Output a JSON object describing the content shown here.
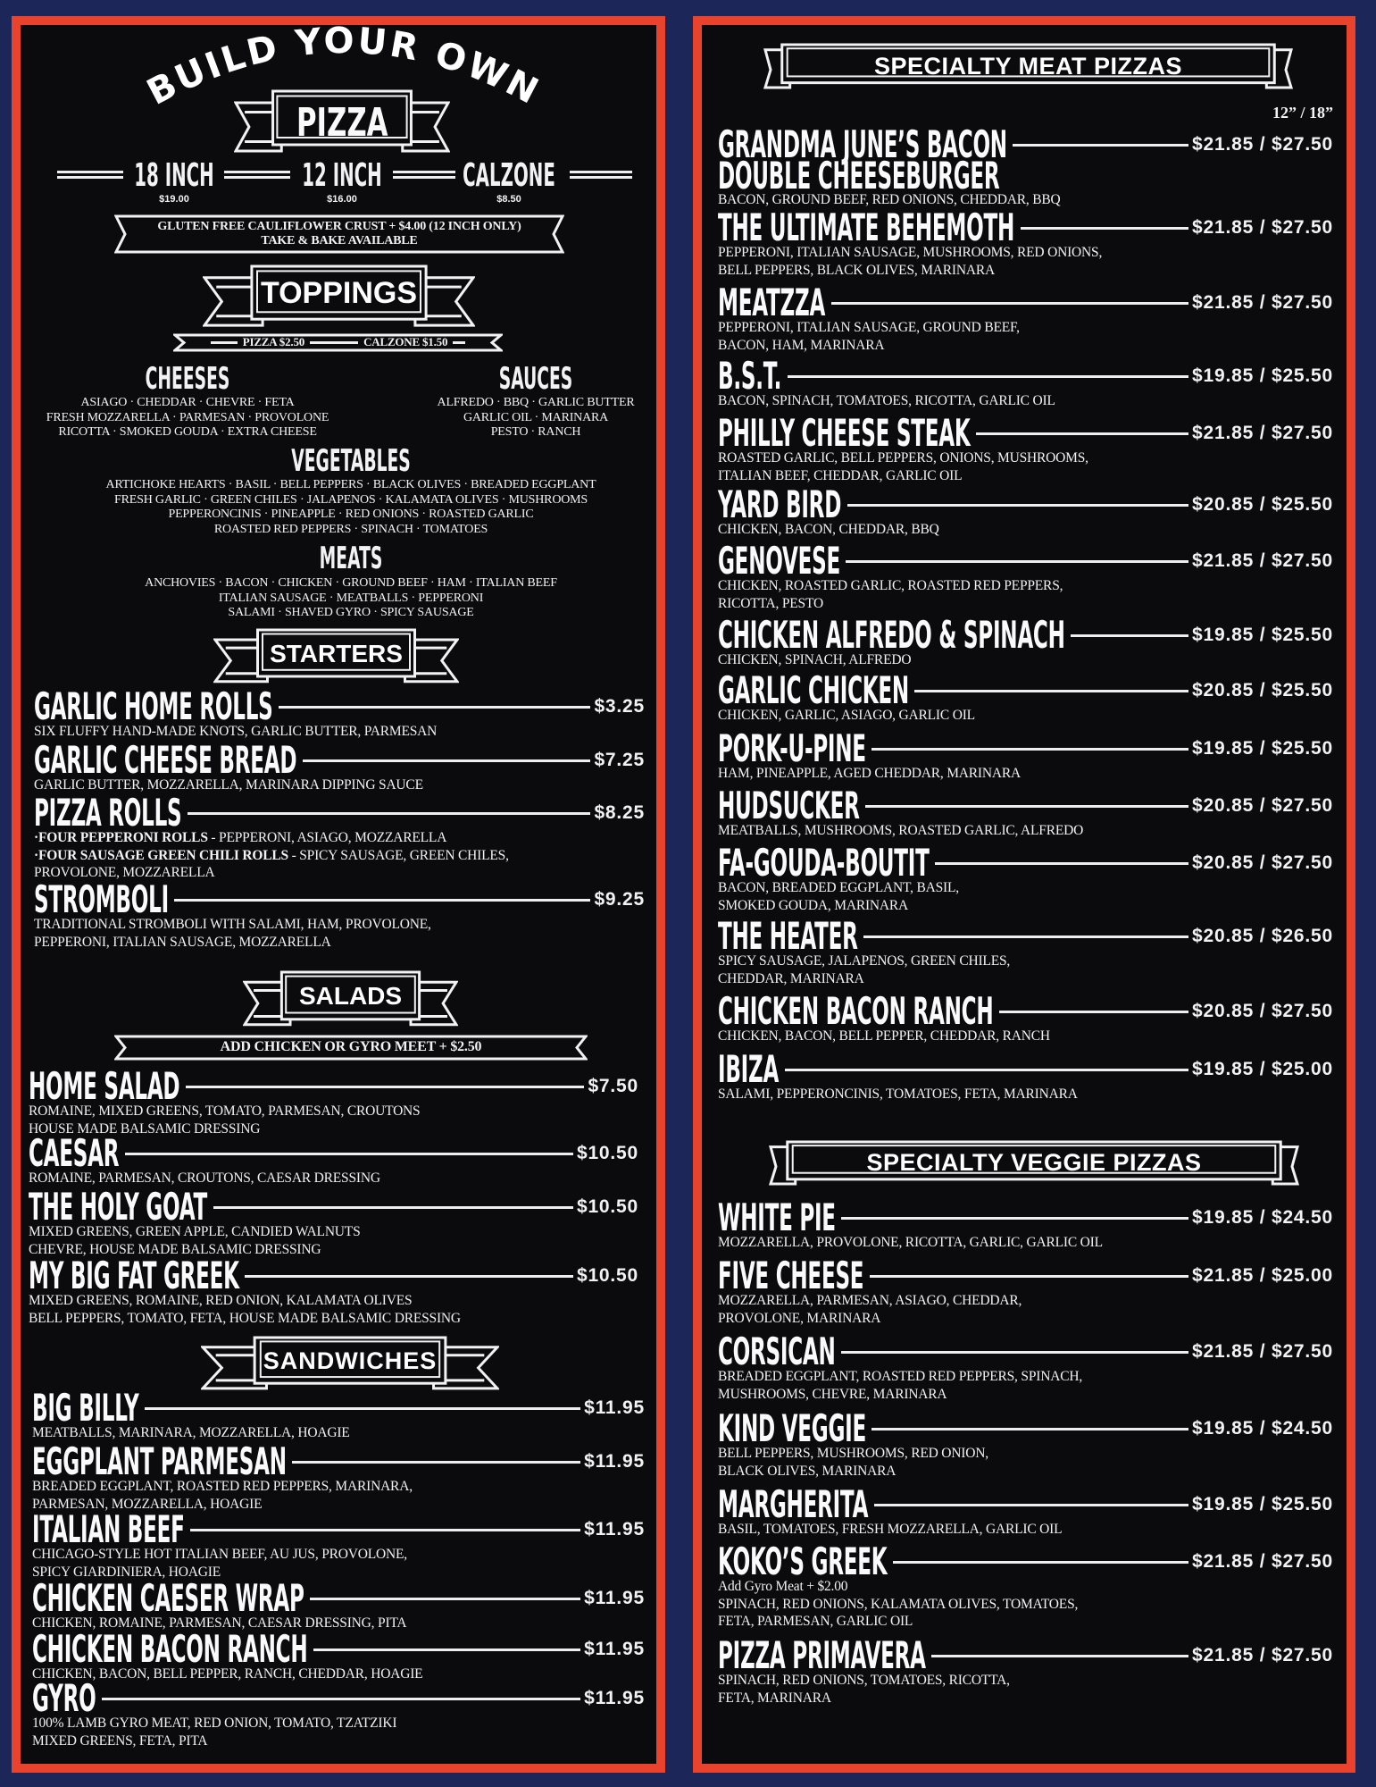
{
  "colors": {
    "background": "#1c2658",
    "border": "#e9432d",
    "panel": "#0b0b0e",
    "text": "#f2f2f2"
  },
  "left": {
    "build": {
      "arc": "BUILD YOUR OWN",
      "title": "PIZZA",
      "sizes": [
        {
          "name": "18 INCH",
          "price": "$19.00"
        },
        {
          "name": "12 INCH",
          "price": "$16.00"
        },
        {
          "name": "CALZONE",
          "price": "$8.50"
        }
      ],
      "note_lines": [
        "GLUTEN FREE CAULIFLOWER CRUST + $4.00 (12 INCH ONLY)",
        "TAKE & BAKE AVAILABLE"
      ]
    },
    "toppings": {
      "title": "TOPPINGS",
      "pizza_price": "PIZZA $2.50",
      "calzone_price": "CALZONE $1.50",
      "groups": [
        {
          "heading": "CHEESES",
          "lines": [
            "ASIAGO · CHEDDAR · CHEVRE · FETA",
            "FRESH MOZZARELLA · PARMESAN · PROVOLONE",
            "RICOTTA · SMOKED GOUDA · EXTRA CHEESE"
          ]
        },
        {
          "heading": "SAUCES",
          "lines": [
            "ALFREDO · BBQ · GARLIC BUTTER",
            "GARLIC OIL · MARINARA",
            "PESTO · RANCH"
          ]
        },
        {
          "heading": "VEGETABLES",
          "lines": [
            "ARTICHOKE HEARTS · BASIL · BELL PEPPERS · BLACK OLIVES · BREADED EGGPLANT",
            "FRESH GARLIC · GREEN CHILES · JALAPENOS · KALAMATA OLIVES · MUSHROOMS",
            "PEPPERONCINIS · PINEAPPLE · RED ONIONS · ROASTED GARLIC",
            "ROASTED RED PEPPERS · SPINACH · TOMATOES"
          ]
        },
        {
          "heading": "MEATS",
          "lines": [
            "ANCHOVIES · BACON · CHICKEN · GROUND BEEF · HAM · ITALIAN BEEF",
            "ITALIAN SAUSAGE · MEATBALLS · PEPPERONI",
            "SALAMI · SHAVED GYRO · SPICY SAUSAGE"
          ]
        }
      ]
    },
    "starters": {
      "title": "STARTERS",
      "items": [
        {
          "name": "GARLIC HOME ROLLS",
          "price": "$3.25",
          "desc": [
            "SIX FLUFFY HAND-MADE KNOTS, GARLIC BUTTER, PARMESAN"
          ]
        },
        {
          "name": "GARLIC CHEESE BREAD",
          "price": "$7.25",
          "desc": [
            "GARLIC BUTTER, MOZZARELLA, MARINARA DIPPING SAUCE"
          ]
        },
        {
          "name": "PIZZA ROLLS",
          "price": "$8.25",
          "desc": [
            {
              "b": "·FOUR PEPPERONI ROLLS",
              "t": " - PEPPERONI, ASIAGO, MOZZARELLA"
            },
            {
              "b": "·FOUR SAUSAGE GREEN CHILI ROLLS",
              "t": " - SPICY SAUSAGE, GREEN CHILES,"
            },
            "PROVOLONE, MOZZARELLA"
          ]
        },
        {
          "name": "STROMBOLI",
          "price": "$9.25",
          "desc": [
            "TRADITIONAL STROMBOLI WITH SALAMI, HAM, PROVOLONE,",
            "PEPPERONI, ITALIAN SAUSAGE, MOZZARELLA"
          ]
        }
      ]
    },
    "salads": {
      "title": "SALADS",
      "note": "ADD CHICKEN OR GYRO MEET + $2.50",
      "items": [
        {
          "name": "HOME SALAD",
          "price": "$7.50",
          "desc": [
            "ROMAINE, MIXED GREENS, TOMATO, PARMESAN, CROUTONS",
            "HOUSE MADE BALSAMIC DRESSING"
          ]
        },
        {
          "name": "CAESAR",
          "price": "$10.50",
          "desc": [
            "ROMAINE, PARMESAN, CROUTONS, CAESAR DRESSING"
          ]
        },
        {
          "name": "THE HOLY GOAT",
          "price": "$10.50",
          "desc": [
            "MIXED GREENS, GREEN APPLE, CANDIED WALNUTS",
            "CHEVRE, HOUSE MADE BALSAMIC DRESSING"
          ]
        },
        {
          "name": "MY BIG FAT GREEK",
          "price": "$10.50",
          "desc": [
            "MIXED GREENS, ROMAINE, RED ONION, KALAMATA OLIVES",
            "BELL PEPPERS, TOMATO, FETA, HOUSE MADE BALSAMIC DRESSING"
          ]
        }
      ]
    },
    "sandwiches": {
      "title": "SANDWICHES",
      "items": [
        {
          "name": "BIG BILLY",
          "price": "$11.95",
          "desc": [
            "MEATBALLS, MARINARA, MOZZARELLA, HOAGIE"
          ]
        },
        {
          "name": "EGGPLANT PARMESAN",
          "price": "$11.95",
          "desc": [
            "BREADED EGGPLANT, ROASTED RED PEPPERS, MARINARA,",
            "PARMESAN, MOZZARELLA, HOAGIE"
          ]
        },
        {
          "name": "ITALIAN BEEF",
          "price": "$11.95",
          "desc": [
            "CHICAGO-STYLE HOT ITALIAN BEEF, AU JUS, PROVOLONE,",
            "SPICY GIARDINIERA, HOAGIE"
          ]
        },
        {
          "name": "CHICKEN CAESER WRAP",
          "price": "$11.95",
          "desc": [
            "CHICKEN, ROMAINE, PARMESAN, CAESAR DRESSING, PITA"
          ]
        },
        {
          "name": "CHICKEN BACON RANCH",
          "price": "$11.95",
          "desc": [
            "CHICKEN, BACON, BELL PEPPER, RANCH, CHEDDAR, HOAGIE"
          ]
        },
        {
          "name": "GYRO",
          "price": "$11.95",
          "desc": [
            "100% LAMB GYRO MEAT, RED ONION, TOMATO, TZATZIKI",
            "MIXED GREENS, FETA, PITA"
          ]
        }
      ]
    }
  },
  "right": {
    "meat": {
      "title": "SPECIALTY MEAT PIZZAS",
      "size_header": "12” / 18”",
      "items": [
        {
          "name": "GRANDMA JUNE’S BACON",
          "name2": "DOUBLE CHEESEBURGER",
          "price": "$21.85 / $27.50",
          "desc": [
            "BACON, GROUND BEEF, RED ONIONS, CHEDDAR, BBQ"
          ]
        },
        {
          "name": "THE ULTIMATE BEHEMOTH",
          "price": "$21.85 / $27.50",
          "desc": [
            "PEPPERONI, ITALIAN SAUSAGE, MUSHROOMS, RED ONIONS,",
            "BELL PEPPERS, BLACK OLIVES, MARINARA"
          ]
        },
        {
          "name": "MEATZZA",
          "price": "$21.85 / $27.50",
          "desc": [
            "PEPPERONI, ITALIAN SAUSAGE, GROUND BEEF,",
            "BACON, HAM, MARINARA"
          ]
        },
        {
          "name": "B.S.T.",
          "price": "$19.85 / $25.50",
          "desc": [
            "BACON, SPINACH, TOMATOES, RICOTTA, GARLIC OIL"
          ]
        },
        {
          "name": "PHILLY CHEESE STEAK",
          "price": "$21.85 / $27.50",
          "desc": [
            "ROASTED GARLIC, BELL PEPPERS, ONIONS, MUSHROOMS,",
            "ITALIAN BEEF, CHEDDAR, GARLIC OIL"
          ]
        },
        {
          "name": "YARD BIRD",
          "price": "$20.85 / $25.50",
          "desc": [
            "CHICKEN, BACON, CHEDDAR, BBQ"
          ]
        },
        {
          "name": "GENOVESE",
          "price": "$21.85 / $27.50",
          "desc": [
            "CHICKEN, ROASTED GARLIC, ROASTED RED PEPPERS,",
            "RICOTTA, PESTO"
          ]
        },
        {
          "name": "CHICKEN ALFREDO & SPINACH",
          "price": "$19.85 / $25.50",
          "desc": [
            "CHICKEN, SPINACH, ALFREDO"
          ]
        },
        {
          "name": "GARLIC CHICKEN",
          "price": "$20.85 / $25.50",
          "desc": [
            "CHICKEN, GARLIC, ASIAGO, GARLIC OIL"
          ]
        },
        {
          "name": "PORK-U-PINE",
          "price": "$19.85 / $25.50",
          "desc": [
            "HAM, PINEAPPLE, AGED CHEDDAR, MARINARA"
          ]
        },
        {
          "name": "HUDSUCKER",
          "price": "$20.85 / $27.50",
          "desc": [
            "MEATBALLS, MUSHROOMS, ROASTED GARLIC, ALFREDO"
          ]
        },
        {
          "name": "FA-GOUDA-BOUTIT",
          "price": "$20.85 / $27.50",
          "desc": [
            "BACON, BREADED EGGPLANT, BASIL,",
            "SMOKED GOUDA, MARINARA"
          ]
        },
        {
          "name": "THE HEATER",
          "price": "$20.85 / $26.50",
          "desc": [
            "SPICY SAUSAGE, JALAPENOS, GREEN CHILES,",
            "CHEDDAR, MARINARA"
          ]
        },
        {
          "name": "CHICKEN BACON RANCH",
          "price": "$20.85 / $27.50",
          "desc": [
            "CHICKEN, BACON, BELL PEPPER, CHEDDAR, RANCH"
          ]
        },
        {
          "name": "IBIZA",
          "price": "$19.85 / $25.00",
          "desc": [
            "SALAMI, PEPPERONCINIS, TOMATOES, FETA, MARINARA"
          ]
        }
      ]
    },
    "veggie": {
      "title": "SPECIALTY VEGGIE PIZZAS",
      "items": [
        {
          "name": "WHITE PIE",
          "price": "$19.85 / $24.50",
          "desc": [
            "MOZZARELLA, PROVOLONE, RICOTTA, GARLIC, GARLIC OIL"
          ]
        },
        {
          "name": "FIVE CHEESE",
          "price": "$21.85 / $25.00",
          "desc": [
            "MOZZARELLA, PARMESAN, ASIAGO, CHEDDAR,",
            "PROVOLONE, MARINARA"
          ]
        },
        {
          "name": "CORSICAN",
          "price": "$21.85 / $27.50",
          "desc": [
            "BREADED EGGPLANT, ROASTED RED PEPPERS, SPINACH,",
            "MUSHROOMS, CHEVRE, MARINARA"
          ]
        },
        {
          "name": "KIND VEGGIE",
          "price": "$19.85 / $24.50",
          "desc": [
            "BELL PEPPERS, MUSHROOMS, RED ONION,",
            "BLACK OLIVES, MARINARA"
          ]
        },
        {
          "name": "MARGHERITA",
          "price": "$19.85 / $25.50",
          "desc": [
            "BASIL, TOMATOES, FRESH MOZZARELLA, GARLIC OIL"
          ]
        },
        {
          "name": "KOKO’S GREEK",
          "price": "$21.85 / $27.50",
          "note": "Add Gyro Meat  + $2.00",
          "desc": [
            "SPINACH, RED ONIONS, KALAMATA OLIVES, TOMATOES,",
            "FETA, PARMESAN, GARLIC OIL"
          ]
        },
        {
          "name": "PIZZA PRIMAVERA",
          "price": "$21.85 / $27.50",
          "desc": [
            "SPINACH, RED ONIONS, TOMATOES, RICOTTA,",
            "FETA, MARINARA"
          ]
        }
      ]
    }
  }
}
